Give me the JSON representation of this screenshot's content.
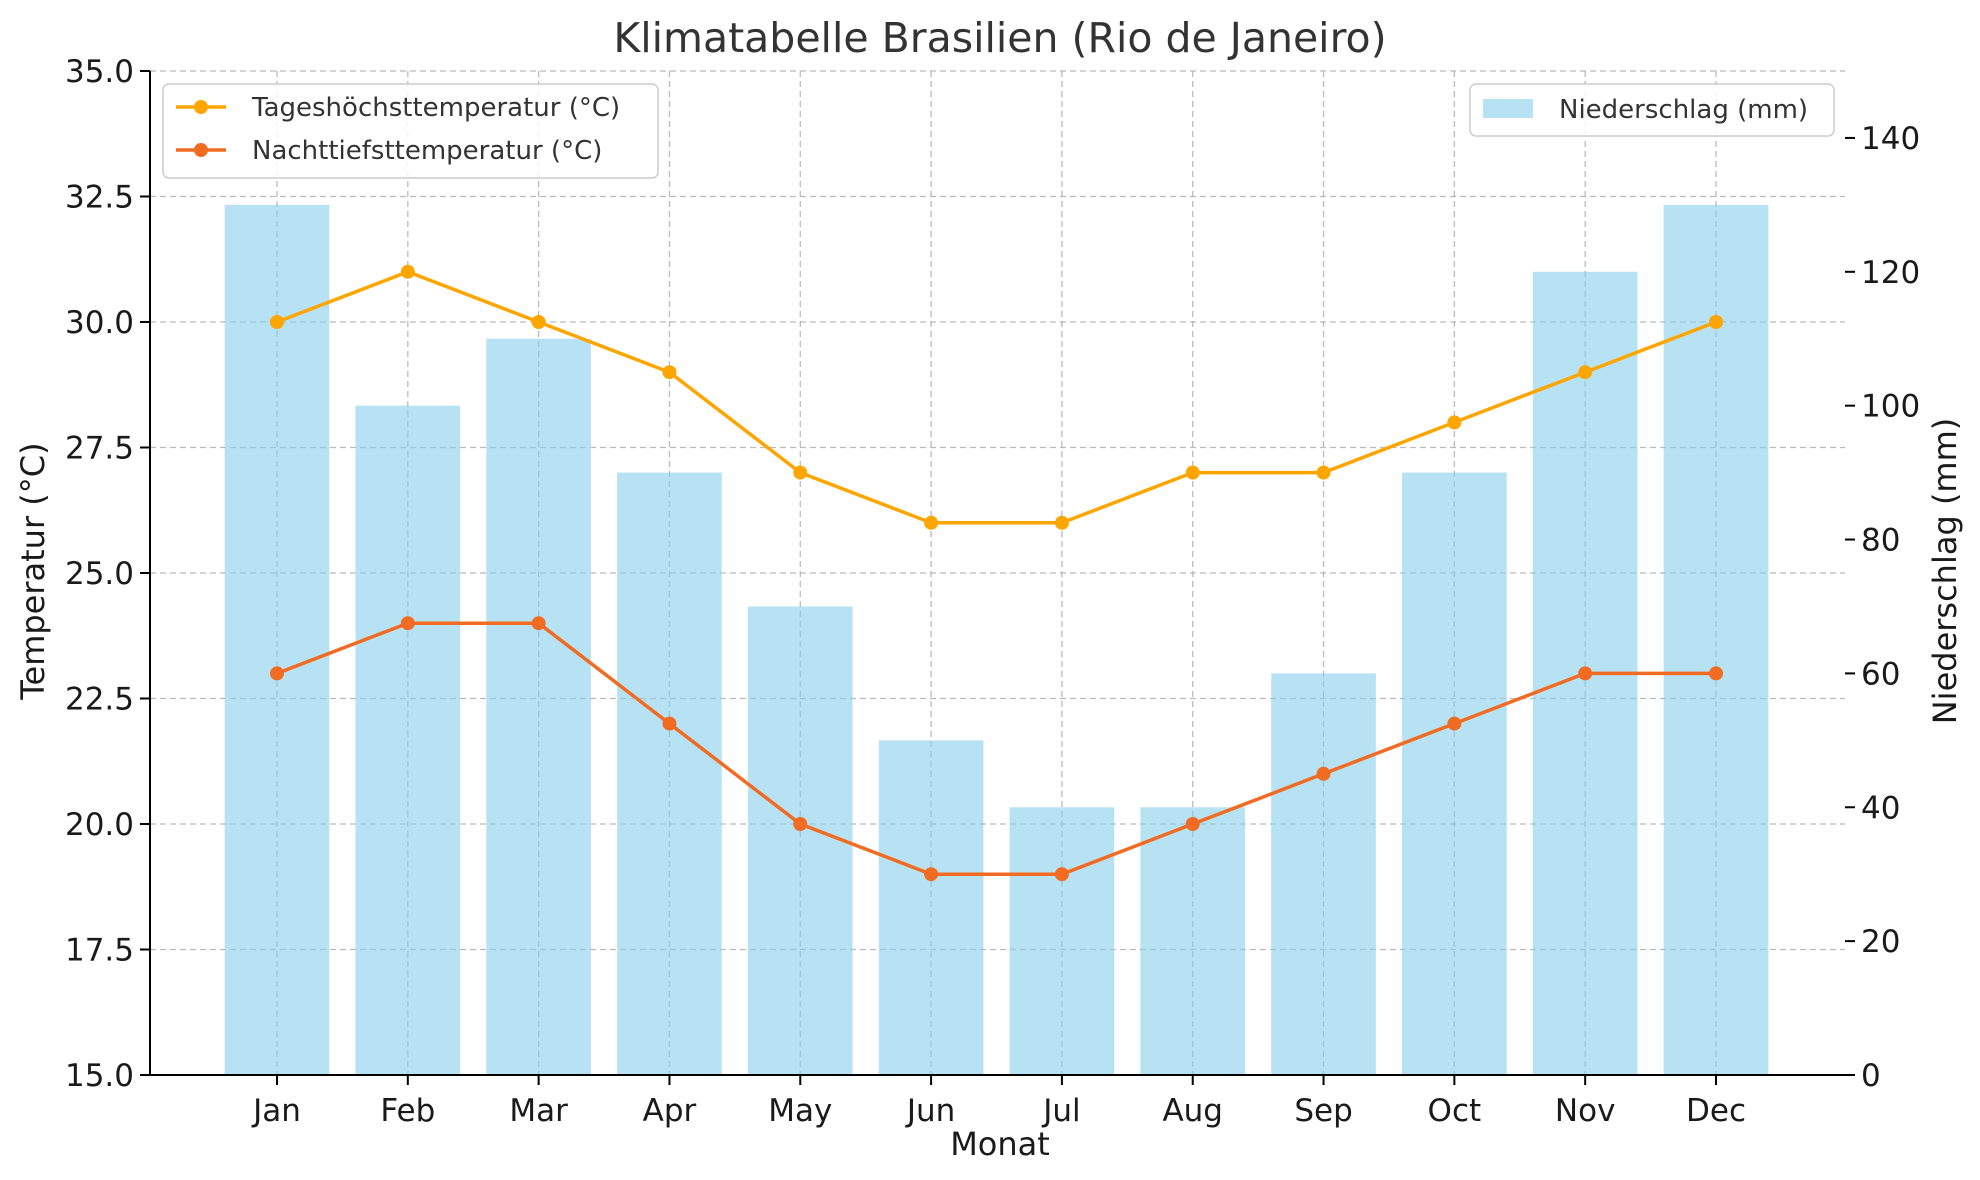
{
  "chart_data": {
    "type": "bar",
    "title": "Klimatabelle Brasilien (Rio de Janeiro)",
    "xlabel": "Monat",
    "ylabel_left": "Temperatur (°C)",
    "ylabel_right": "Niederschlag (mm)",
    "categories": [
      "Jan",
      "Feb",
      "Mar",
      "Apr",
      "May",
      "Jun",
      "Jul",
      "Aug",
      "Sep",
      "Oct",
      "Nov",
      "Dec"
    ],
    "ylim_left": [
      15,
      35
    ],
    "yticks_left": [
      "15.0",
      "17.5",
      "20.0",
      "22.5",
      "25.0",
      "27.5",
      "30.0",
      "32.5",
      "35.0"
    ],
    "ylim_right": [
      0,
      150
    ],
    "yticks_right": [
      "0",
      "20",
      "40",
      "60",
      "80",
      "100",
      "120",
      "140"
    ],
    "grid": true,
    "series": [
      {
        "name": "Tageshöchsttemperatur (°C)",
        "type": "line",
        "axis": "left",
        "color": "#FFA500",
        "values": [
          30,
          31,
          30,
          29,
          27,
          26,
          26,
          27,
          27,
          28,
          29,
          30
        ]
      },
      {
        "name": "Nachttiefsttemperatur (°C)",
        "type": "line",
        "axis": "left",
        "color": "#F26B22",
        "values": [
          23,
          24,
          24,
          22,
          20,
          19,
          19,
          20,
          21,
          22,
          23,
          23
        ]
      },
      {
        "name": "Niederschlag (mm)",
        "type": "bar",
        "axis": "right",
        "color": "#87CEEB",
        "values": [
          130,
          100,
          110,
          90,
          70,
          50,
          40,
          40,
          60,
          90,
          120,
          130
        ]
      }
    ],
    "legend_left_position": "upper-left",
    "legend_right_position": "upper-right"
  }
}
